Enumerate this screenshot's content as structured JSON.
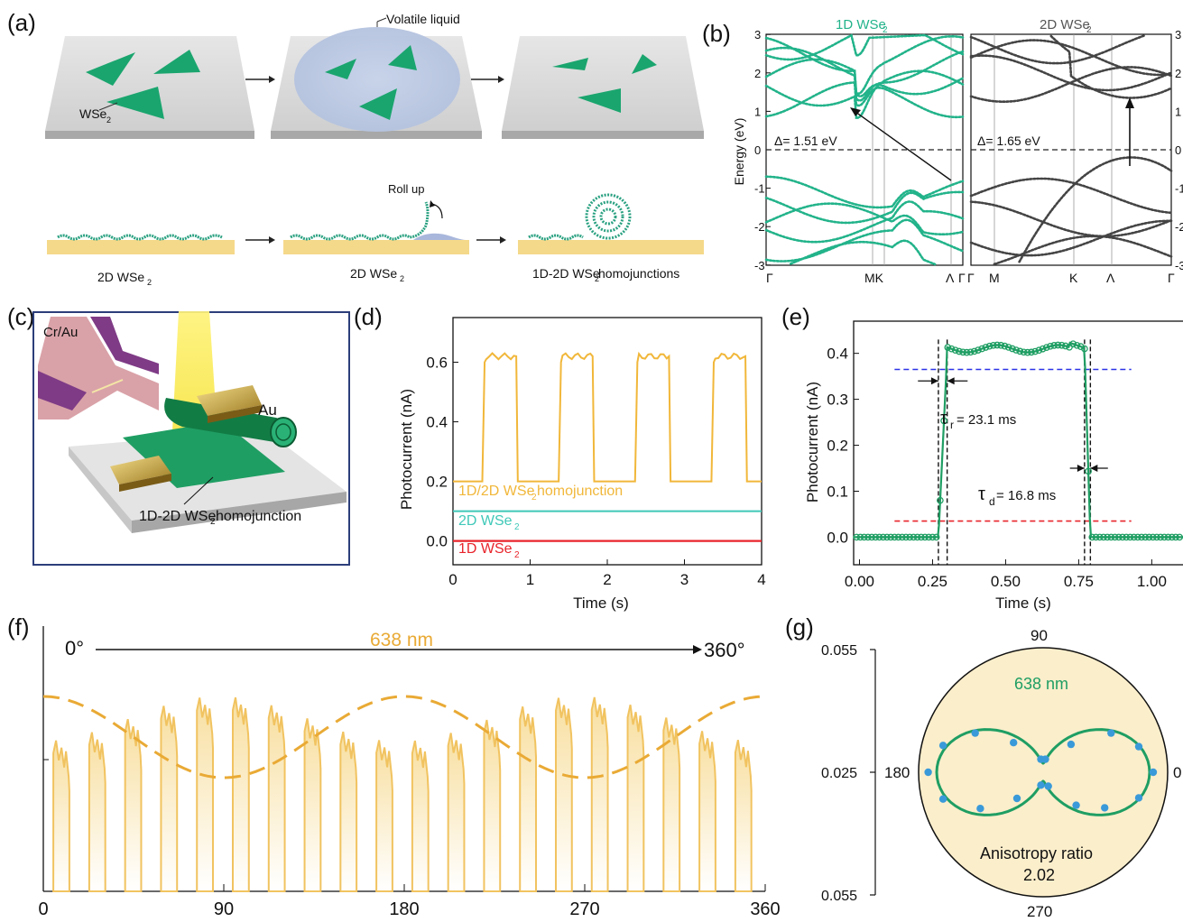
{
  "panel_labels": {
    "a": "(a)",
    "b": "(b)",
    "c": "(c)",
    "d": "(d)",
    "e": "(e)",
    "f": "(f)",
    "g": "(g)"
  },
  "panel_a": {
    "volatile_liquid": "Volatile liquid",
    "wse2_flake": "WSe",
    "roll_up": "Roll up",
    "cap1": "2D WSe",
    "cap2": "2D WSe",
    "cap3": "1D-2D WSe",
    "cap3_tail": " homojunctions",
    "sub": "2",
    "colors": {
      "flake": "#1aa56e",
      "substrate": "#d9d9d9",
      "gold": "#f5d98a",
      "liquid": "#b9c8e2"
    }
  },
  "panel_b": {
    "left_title": "1D WSe",
    "right_title": "2D WSe",
    "sub": "2",
    "ylabel": "Energy (eV)",
    "left_gap": "Δ= 1.51 eV",
    "right_gap": "Δ= 1.65 eV",
    "left_kpoints": [
      "Γ",
      "MK",
      "Λ",
      "Γ"
    ],
    "right_kpoints": [
      "Γ",
      "M",
      "K",
      "Λ",
      "Γ"
    ],
    "left_yticks": [
      "3",
      "2",
      "1",
      "0",
      "-1",
      "-2",
      "-3"
    ],
    "right_yticks": [
      "3",
      "2",
      "1",
      "0",
      "-1",
      "-2",
      "-3"
    ],
    "colors": {
      "left": "#22b38a",
      "right": "#444444"
    }
  },
  "panel_c": {
    "cr_au": "Cr/Au",
    "au": "Au",
    "caption": "1D-2D WSe",
    "caption_tail": " homojunction",
    "sub": "2",
    "colors": {
      "border": "#2c3e7a",
      "beam": "#f6e84a",
      "flake": "#1f9e63",
      "gold": "#c9a13c"
    }
  },
  "chart_data": [
    {
      "id": "d",
      "type": "line",
      "xlabel": "Time (s)",
      "ylabel": "Photocurrent (nA)",
      "xlim": [
        0,
        4
      ],
      "ylim": [
        -0.08,
        0.75
      ],
      "xticks": [
        "0",
        "1",
        "2",
        "3",
        "4"
      ],
      "yticks": [
        "0.0",
        "0.2",
        "0.4",
        "0.6"
      ],
      "series": [
        {
          "name": "1D/2D WSe2 homojunction",
          "label": "1D/2D WSe",
          "color": "#f1b73a",
          "period": 0.99,
          "on_start": 0.38,
          "on_end": 0.82,
          "low": 0.2,
          "high": 0.62
        },
        {
          "name": "2D WSe2",
          "label": "2D WSe",
          "color": "#3fc8b8",
          "value": 0.1
        },
        {
          "name": "1D WSe2",
          "label": "1D WSe",
          "color": "#e8242b",
          "value": 0.0
        }
      ],
      "legend_tail": " homojunction",
      "sub": "2"
    },
    {
      "id": "e",
      "type": "line",
      "xlabel": "Time (s)",
      "ylabel": "Photocurrent (nA)",
      "xlim": [
        -0.02,
        1.11
      ],
      "ylim": [
        -0.06,
        0.47
      ],
      "xticks": [
        "0.00",
        "0.25",
        "0.50",
        "0.75",
        "1.00"
      ],
      "yticks": [
        "0.0",
        "0.1",
        "0.2",
        "0.3",
        "0.4"
      ],
      "rise_start": 0.27,
      "rise_end": 0.3,
      "fall_start": 0.77,
      "fall_end": 0.79,
      "low": 0.0,
      "high": 0.41,
      "tau_r": "= 23.1 ms",
      "tau_d": "= 16.8 ms",
      "tau_r_sym": "τ",
      "tau_r_sub": "r",
      "tau_d_sym": "τ",
      "tau_d_sub": "d",
      "guide_high": 0.365,
      "guide_low": 0.035,
      "colors": {
        "data": "#1f9e63",
        "high": "#2b32e6",
        "low": "#e8242b"
      }
    },
    {
      "id": "f",
      "type": "line",
      "title": "638 nm",
      "arrow_start": "0°",
      "arrow_end": "360°",
      "xlim": [
        0,
        360
      ],
      "xticks": [
        "0",
        "90",
        "180",
        "270",
        "360"
      ],
      "pulses": 20,
      "envelope": "cos(2θ)",
      "color": "#f1c360"
    },
    {
      "id": "g",
      "type": "scatter",
      "title": "638 nm",
      "angle_labels": [
        "90",
        "0",
        "270",
        "180"
      ],
      "r_labels": [
        "0.055",
        "0.025",
        "0.055"
      ],
      "annotation": "Anisotropy ratio",
      "ratio": "2.02",
      "colors": {
        "fill": "#fbeecb",
        "fit": "#1f9e63",
        "points": "#3a9ad9"
      }
    }
  ]
}
